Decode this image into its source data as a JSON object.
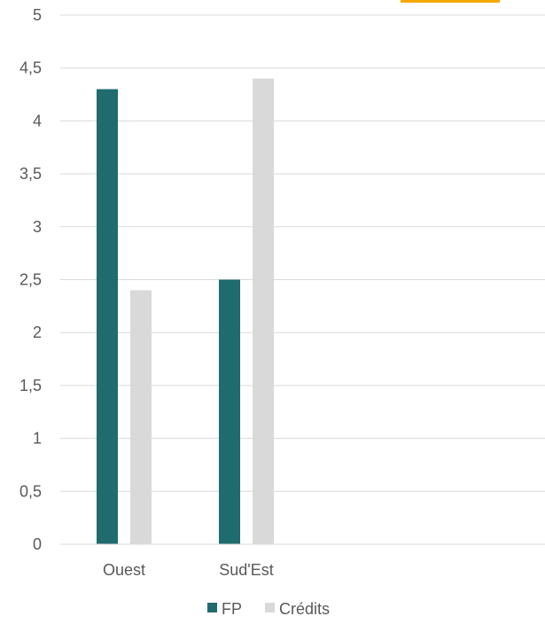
{
  "chart_data": {
    "type": "bar",
    "categories": [
      "Ouest",
      "Sud'Est"
    ],
    "series": [
      {
        "name": "FP",
        "values": [
          4.3,
          2.5
        ],
        "color": "#1f6b6e"
      },
      {
        "name": "Crédits",
        "values": [
          2.4,
          4.4
        ],
        "color": "#d9d9d9"
      }
    ],
    "ylim": [
      0,
      5
    ],
    "yticks": [
      "0",
      "0,5",
      "1",
      "1,5",
      "2",
      "2,5",
      "3",
      "3,5",
      "4",
      "4,5",
      "5"
    ],
    "grid": true,
    "legend_position": "bottom-center",
    "title": "",
    "xlabel": "",
    "ylabel": ""
  },
  "decor": {
    "corner_badge_color": "#f5a800"
  }
}
